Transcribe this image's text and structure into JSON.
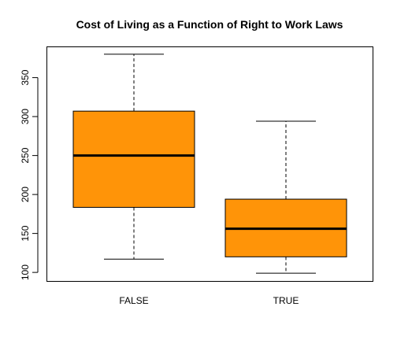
{
  "chart_data": {
    "type": "boxplot",
    "title": "Cost of Living as a Function of Right to Work Laws",
    "xlabel": "",
    "ylabel": "",
    "categories": [
      "FALSE",
      "TRUE"
    ],
    "boxes": [
      {
        "category": "FALSE",
        "whisker_low": 117,
        "q1": 183.5,
        "median": 250,
        "q3": 307,
        "whisker_high": 380
      },
      {
        "category": "TRUE",
        "whisker_low": 99,
        "q1": 120,
        "median": 156,
        "q3": 194,
        "whisker_high": 294
      }
    ],
    "yticks": [
      "100",
      "150",
      "200",
      "250",
      "300",
      "350"
    ],
    "ylim": [
      88,
      389
    ],
    "box_color": "#FF9408",
    "median_color": "#000000",
    "grid": false,
    "legend": false
  }
}
